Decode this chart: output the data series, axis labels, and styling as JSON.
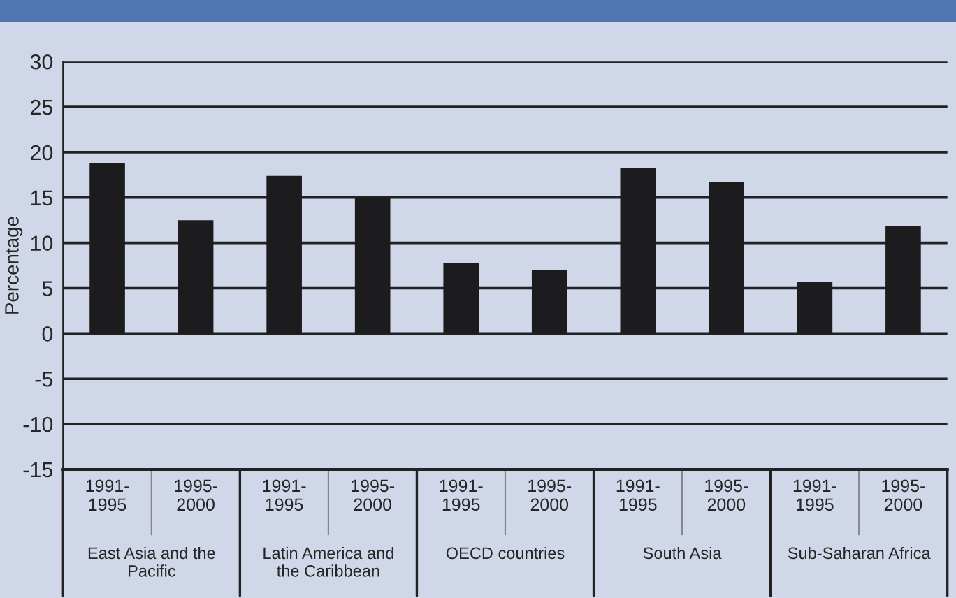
{
  "chart_data": {
    "type": "bar",
    "ylabel": "Percentage",
    "categories": [
      "1991-1995",
      "1995-2000",
      "1991-1995",
      "1995-2000",
      "1991-1995",
      "1995-2000",
      "1991-1995",
      "1995-2000",
      "1991-1995",
      "1995-2000"
    ],
    "values": [
      18.8,
      12.5,
      17.4,
      14.9,
      7.8,
      7.0,
      18.3,
      16.7,
      5.7,
      11.9
    ],
    "color": "#1c1c1e",
    "annotations": [
      "East Asia and the Pacific",
      "Latin America and the Caribbean",
      "OECD countries",
      "South Asia",
      "Sub-Saharan Africa"
    ],
    "ylim": [
      -15,
      30
    ],
    "yticks": [
      -15,
      -10,
      -5,
      0,
      5,
      10,
      15,
      20,
      25,
      30
    ],
    "grid": "y"
  }
}
